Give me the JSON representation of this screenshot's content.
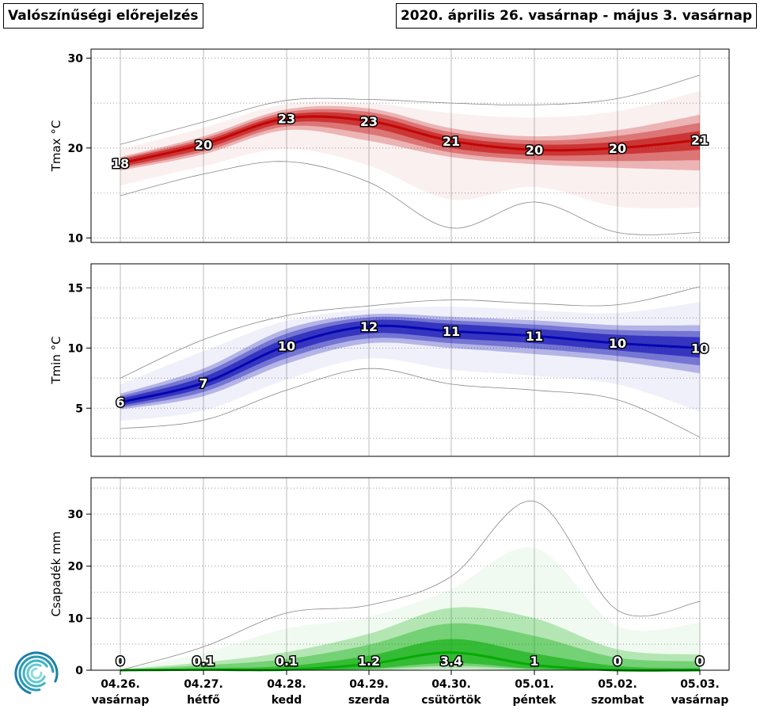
{
  "header": {
    "title": "Valószínűségi előrejelzés",
    "period": "2020. április 26. vasárnap - május 3. vasárnap"
  },
  "chart_data": [
    {
      "type": "area",
      "ylabel": "Tmax °C",
      "color": "#c00000",
      "ylim": [
        9.5,
        31
      ],
      "yticks": [
        10,
        20,
        30
      ],
      "grid": true,
      "categories": [
        "04.26.",
        "04.27.",
        "04.28.",
        "04.29.",
        "04.30.",
        "05.01.",
        "05.02.",
        "05.03."
      ],
      "median": [
        18.3,
        20.4,
        23.3,
        23.0,
        20.8,
        19.8,
        20.0,
        20.9
      ],
      "q25": [
        17.9,
        19.9,
        22.8,
        22.3,
        20.0,
        19.2,
        19.3,
        19.8
      ],
      "q75": [
        18.7,
        20.8,
        23.7,
        23.6,
        21.3,
        20.4,
        20.7,
        21.9
      ],
      "p5": [
        17.5,
        19.3,
        22.0,
        20.8,
        19.0,
        18.2,
        17.8,
        17.5
      ],
      "p95": [
        19.0,
        21.3,
        24.3,
        24.4,
        22.2,
        21.3,
        22.0,
        23.7
      ],
      "min": [
        14.7,
        17.1,
        18.5,
        16.2,
        11.1,
        14.0,
        10.6,
        10.6
      ],
      "max": [
        20.4,
        22.9,
        25.3,
        25.4,
        25.0,
        24.8,
        25.5,
        28.1
      ],
      "labels": [
        "18",
        "20",
        "23",
        "23",
        "21",
        "20",
        "20",
        "21"
      ]
    },
    {
      "type": "area",
      "ylabel": "Tmin °C",
      "color": "#0000b0",
      "ylim": [
        1,
        17
      ],
      "yticks": [
        5,
        10,
        15
      ],
      "grid": true,
      "categories": [
        "04.26.",
        "04.27.",
        "04.28.",
        "04.29.",
        "04.30.",
        "05.01.",
        "05.02.",
        "05.03."
      ],
      "median": [
        5.5,
        7.1,
        10.2,
        11.8,
        11.4,
        11.0,
        10.4,
        10.0
      ],
      "q25": [
        5.2,
        6.7,
        9.6,
        11.2,
        10.8,
        10.4,
        9.8,
        9.2
      ],
      "q75": [
        5.8,
        7.6,
        10.8,
        12.3,
        12.0,
        11.6,
        11.1,
        10.9
      ],
      "p5": [
        4.9,
        6.0,
        8.7,
        10.4,
        10.0,
        9.5,
        8.9,
        7.9
      ],
      "p95": [
        6.2,
        8.3,
        11.6,
        12.8,
        12.6,
        12.3,
        11.9,
        11.9
      ],
      "min": [
        3.3,
        4.0,
        6.5,
        8.3,
        7.0,
        6.5,
        5.7,
        2.6
      ],
      "max": [
        7.5,
        10.7,
        12.7,
        13.5,
        14.0,
        13.7,
        13.6,
        15.1
      ],
      "labels": [
        "6",
        "7",
        "10",
        "12",
        "11",
        "11",
        "10",
        "10"
      ]
    },
    {
      "type": "area",
      "ylabel": "Csapadék mm",
      "color": "#00aa00",
      "ylim": [
        0,
        37
      ],
      "yticks": [
        0,
        10,
        20,
        30
      ],
      "grid": true,
      "categories": [
        "04.26.",
        "04.27.",
        "04.28.",
        "04.29.",
        "04.30.",
        "05.01.",
        "05.02.",
        "05.03."
      ],
      "days": [
        "vasárnap",
        "hétfő",
        "kedd",
        "szerda",
        "csütörtök",
        "péntek",
        "szombat",
        "vasárnap"
      ],
      "median": [
        0,
        0.1,
        0.1,
        1.2,
        3.4,
        1.0,
        0,
        0
      ],
      "q25": [
        0,
        0,
        0,
        0.3,
        1.4,
        0.3,
        0,
        0
      ],
      "q75": [
        0,
        0.4,
        0.8,
        2.8,
        6.0,
        3.2,
        0.8,
        0.4
      ],
      "p5": [
        0,
        0,
        0,
        0,
        0.3,
        0,
        0,
        0
      ],
      "p95": [
        0.2,
        1.5,
        3.5,
        7.0,
        12.0,
        10.0,
        4.0,
        3.0
      ],
      "min": [
        0,
        0,
        0,
        0,
        0,
        0,
        0,
        0
      ],
      "max": [
        0,
        4.5,
        11.0,
        12.5,
        18.0,
        32.5,
        11.5,
        13.2
      ],
      "labels": [
        "0",
        "0.1",
        "0.1",
        "1.2",
        "3.4",
        "1",
        "0",
        "0"
      ]
    }
  ]
}
